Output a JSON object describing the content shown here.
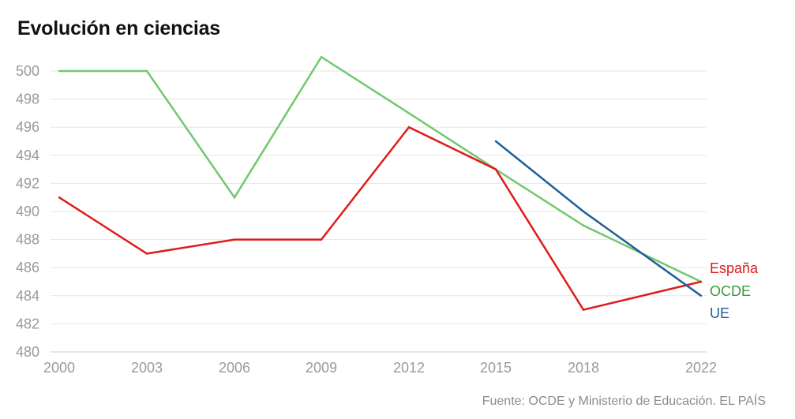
{
  "title": "Evolución en ciencias",
  "source": "Fuente: OCDE y Ministerio de Educación. EL PAÍS",
  "chart_data": {
    "type": "line",
    "title": "Evolución en ciencias",
    "xlabel": "",
    "ylabel": "",
    "ylim": [
      480,
      500
    ],
    "yticks": [
      480,
      482,
      484,
      486,
      488,
      490,
      492,
      494,
      496,
      498,
      500
    ],
    "categories": [
      "2000",
      "2003",
      "2006",
      "2009",
      "2012",
      "2015",
      "2018",
      "2022"
    ],
    "series": [
      {
        "name": "OCDE",
        "color": "#72c86e",
        "values": [
          500,
          500,
          491,
          501,
          497,
          493,
          489,
          485
        ]
      },
      {
        "name": "España",
        "color": "#e01b1b",
        "values": [
          491,
          487,
          488,
          488,
          496,
          493,
          483,
          485
        ]
      },
      {
        "name": "UE",
        "color": "#1f5f9a",
        "values": [
          null,
          null,
          null,
          null,
          null,
          495,
          490,
          484
        ]
      }
    ],
    "legend": [
      {
        "label": "España",
        "color": "#e01b1b"
      },
      {
        "label": "OCDE",
        "color": "#3c9a3c"
      },
      {
        "label": "UE",
        "color": "#1f5f9a"
      }
    ],
    "grid": true,
    "legend_position": "right"
  }
}
